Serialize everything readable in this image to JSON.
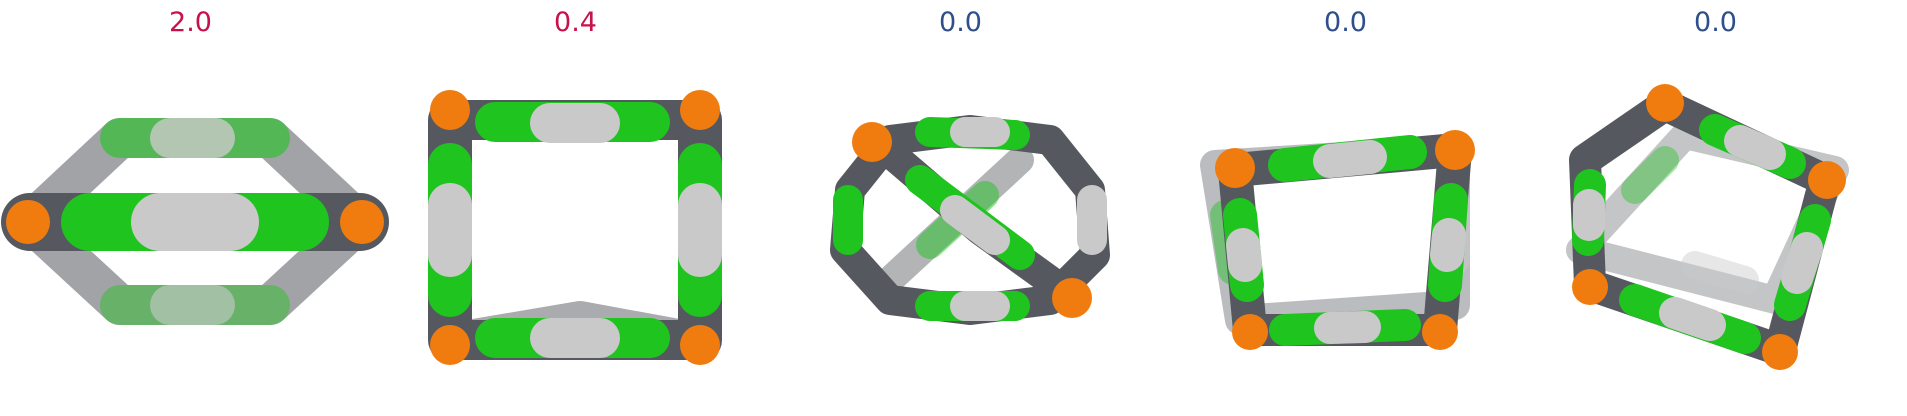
{
  "colors": {
    "high": "#c8104a",
    "low": "#2e4e8c",
    "carbon": "#55585e",
    "green": "#1fc41f",
    "silver": "#c9c9c9",
    "orange": "#f07c10"
  },
  "panels": [
    {
      "label": "2.0",
      "tone": "high",
      "molecule": "flat-ring-side-view"
    },
    {
      "label": "0.4",
      "tone": "high",
      "molecule": "rectangular-ring"
    },
    {
      "label": "0.0",
      "tone": "low",
      "molecule": "twisted-hexagonal-cage"
    },
    {
      "label": "0.0",
      "tone": "low",
      "molecule": "square-cage"
    },
    {
      "label": "0.0",
      "tone": "low",
      "molecule": "tilted-diamond-cage"
    }
  ]
}
